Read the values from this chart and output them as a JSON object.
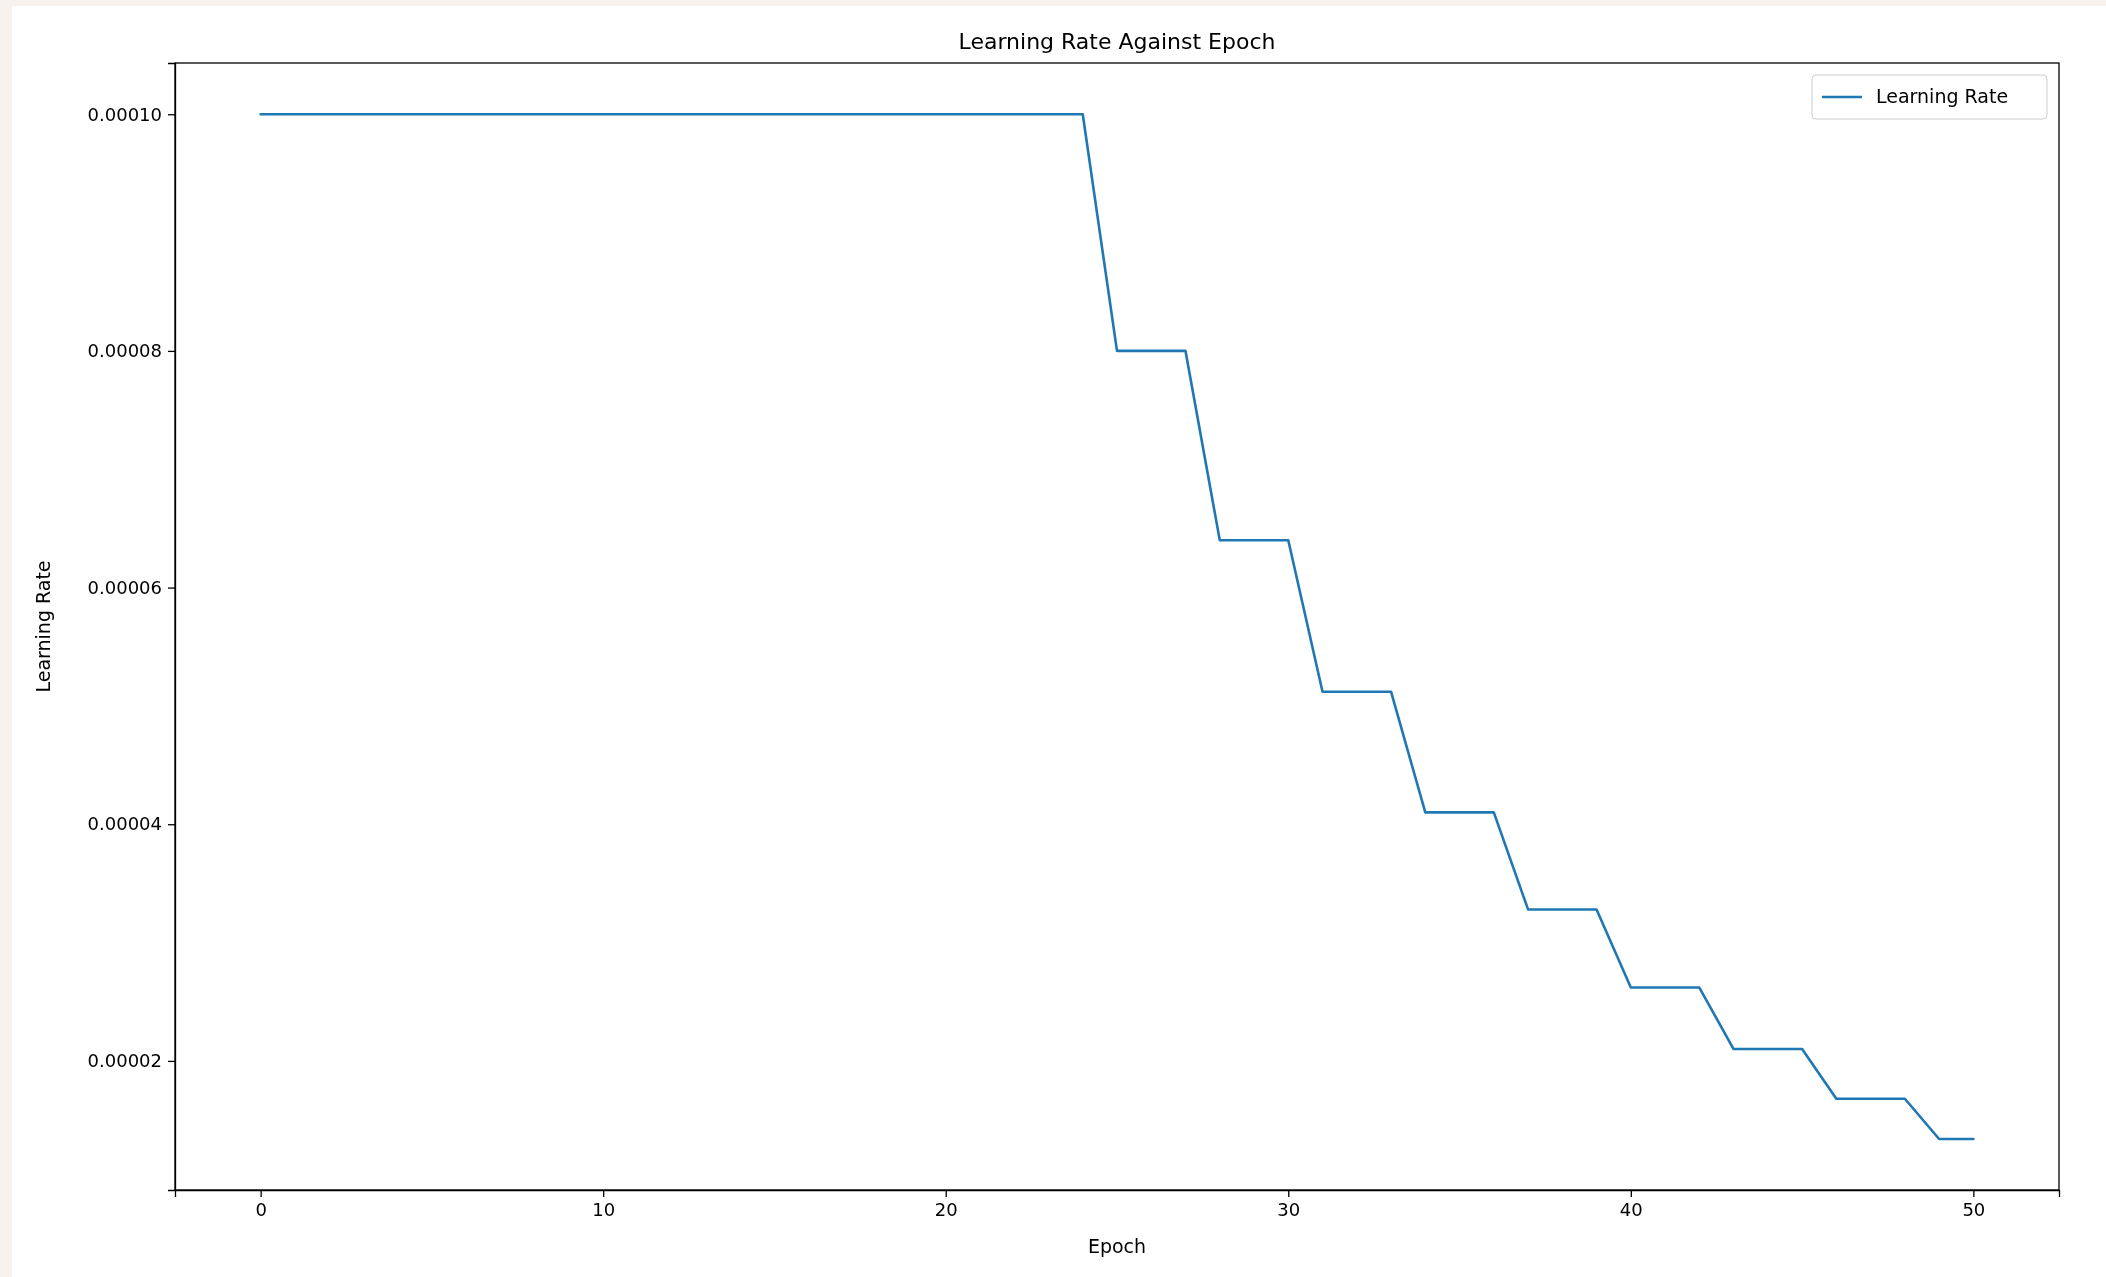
{
  "chart_data": {
    "type": "line",
    "title": "Learning Rate Against Epoch",
    "xlabel": "Epoch",
    "ylabel": "Learning Rate",
    "series": [
      {
        "name": "Learning Rate",
        "color": "#1f77b4",
        "x": [
          0,
          1,
          2,
          3,
          4,
          5,
          6,
          7,
          8,
          9,
          10,
          11,
          12,
          13,
          14,
          15,
          16,
          17,
          18,
          19,
          20,
          21,
          22,
          23,
          24,
          25,
          26,
          27,
          28,
          29,
          30,
          31,
          32,
          33,
          34,
          35,
          36,
          37,
          38,
          39,
          40,
          41,
          42,
          43,
          44,
          45,
          46,
          47,
          48,
          49,
          50
        ],
        "values": [
          0.0001,
          0.0001,
          0.0001,
          0.0001,
          0.0001,
          0.0001,
          0.0001,
          0.0001,
          0.0001,
          0.0001,
          0.0001,
          0.0001,
          0.0001,
          0.0001,
          0.0001,
          0.0001,
          0.0001,
          0.0001,
          0.0001,
          0.0001,
          0.0001,
          0.0001,
          0.0001,
          0.0001,
          0.0001,
          8e-05,
          8e-05,
          8e-05,
          6.4e-05,
          6.4e-05,
          6.4e-05,
          5.12e-05,
          5.12e-05,
          5.12e-05,
          4.1e-05,
          4.1e-05,
          4.1e-05,
          3.28e-05,
          3.28e-05,
          3.28e-05,
          2.62e-05,
          2.62e-05,
          2.62e-05,
          2.1e-05,
          2.1e-05,
          2.1e-05,
          1.68e-05,
          1.68e-05,
          1.68e-05,
          1.34e-05,
          1.34e-05
        ]
      }
    ],
    "xlim": [
      -2.5,
      52.5
    ],
    "xticks": [
      0,
      10,
      20,
      30,
      40,
      50
    ],
    "ylim": [
      9.09e-06,
      0.00010433
    ],
    "yticks": [
      {
        "value": 2e-05,
        "label": "0.00002"
      },
      {
        "value": 4e-05,
        "label": "0.00004"
      },
      {
        "value": 6e-05,
        "label": "0.00006"
      },
      {
        "value": 8e-05,
        "label": "0.00008"
      },
      {
        "value": 0.0001,
        "label": "0.00010"
      }
    ],
    "grid": false,
    "legend": "top right",
    "marker": "none",
    "line_style": "solid"
  }
}
